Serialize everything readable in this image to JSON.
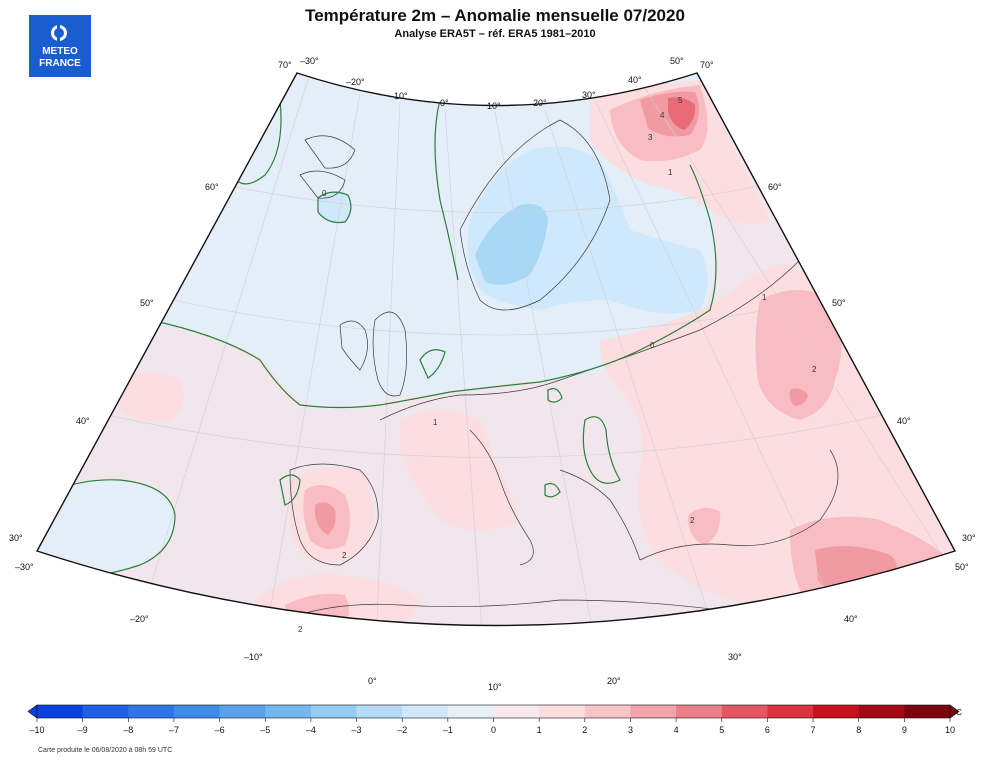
{
  "header": {
    "title": "Température 2m – Anomalie mensuelle 07/2020",
    "subtitle": "Analyse ERA5T – réf. ERA5 1981–2010"
  },
  "logo": {
    "line1": "METEO",
    "line2": "FRANCE",
    "icon": "meteo-france-logo-icon"
  },
  "map": {
    "lat_labels_left": [
      "70°",
      "60°",
      "50°",
      "40°",
      "30°"
    ],
    "lat_labels_right": [
      "70°",
      "60°",
      "50°",
      "40°",
      "30°"
    ],
    "lon_labels_top": [
      "–30°",
      "–20°",
      "–10°",
      "0°",
      "10°",
      "20°",
      "30°",
      "40°",
      "50°"
    ],
    "lon_labels_bottom": [
      "–30°",
      "–20°",
      "–10°",
      "0°",
      "10°",
      "20°",
      "30°",
      "40°",
      "50°"
    ],
    "contour_labels": [
      "0",
      "0",
      "1",
      "1",
      "1",
      "2",
      "2",
      "2",
      "2",
      "3",
      "4",
      "5"
    ],
    "colors": {
      "cold": "#e3eef8",
      "neutral": "#f1e6ec",
      "warm1": "#fcdde0",
      "warm2": "#f8bcc2",
      "warm3": "#f19aa2",
      "warm4": "#e86c77",
      "cool1": "#cfe8fb",
      "cool2": "#a9d8f5",
      "contour": "#2f7d3a"
    }
  },
  "colorbar": {
    "ticks": [
      "–10",
      "–9",
      "–8",
      "–7",
      "–6",
      "–5",
      "–4",
      "–3",
      "–2",
      "–1",
      "0",
      "1",
      "2",
      "3",
      "4",
      "5",
      "6",
      "7",
      "8",
      "9",
      "10"
    ],
    "unit": "°C",
    "colors": [
      "#0a3fe0",
      "#1f5fe6",
      "#2f74e8",
      "#3f8be8",
      "#5aa3ec",
      "#74b8ef",
      "#94cbf3",
      "#b4dcf6",
      "#cfe8f9",
      "#e5f0f8",
      "#f6e8ee",
      "#fbdde0",
      "#f9c4c8",
      "#f3a3aa",
      "#ec8089",
      "#e45762",
      "#dc303d",
      "#c8101d",
      "#a40814",
      "#7c040d"
    ]
  },
  "footer": {
    "text": "Carte produite le 06/08/2020 à 08h 59 UTC"
  }
}
